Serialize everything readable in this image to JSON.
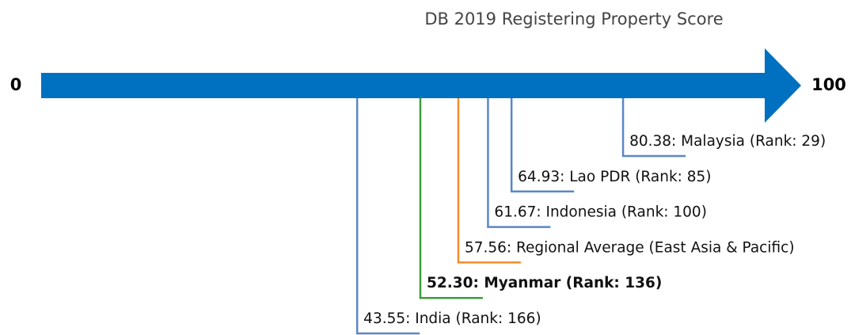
{
  "chart_data": {
    "type": "number-line",
    "title": "DB 2019 Registering Property Score",
    "xlim": [
      0,
      100
    ],
    "xticks": [
      0,
      100
    ],
    "values": [
      43.55,
      52.3,
      57.56,
      61.67,
      64.93,
      80.38
    ],
    "value_labels": [
      "43.55: India (Rank: 166)",
      "52.30: Myanmar (Rank: 136)",
      "57.56: Regional Average (East Asia & Pacific)",
      "61.67: Indonesia (Rank: 100)",
      "64.93: Lao PDR (Rank: 85)",
      "80.38: Malaysia (Rank: 29)"
    ],
    "colors": [
      "#5b87c6",
      "#3c9d3c",
      "#f28e2b",
      "#5b87c6",
      "#5b87c6",
      "#5b87c6"
    ],
    "highlight": 1,
    "axis_color": "#0070c0"
  }
}
